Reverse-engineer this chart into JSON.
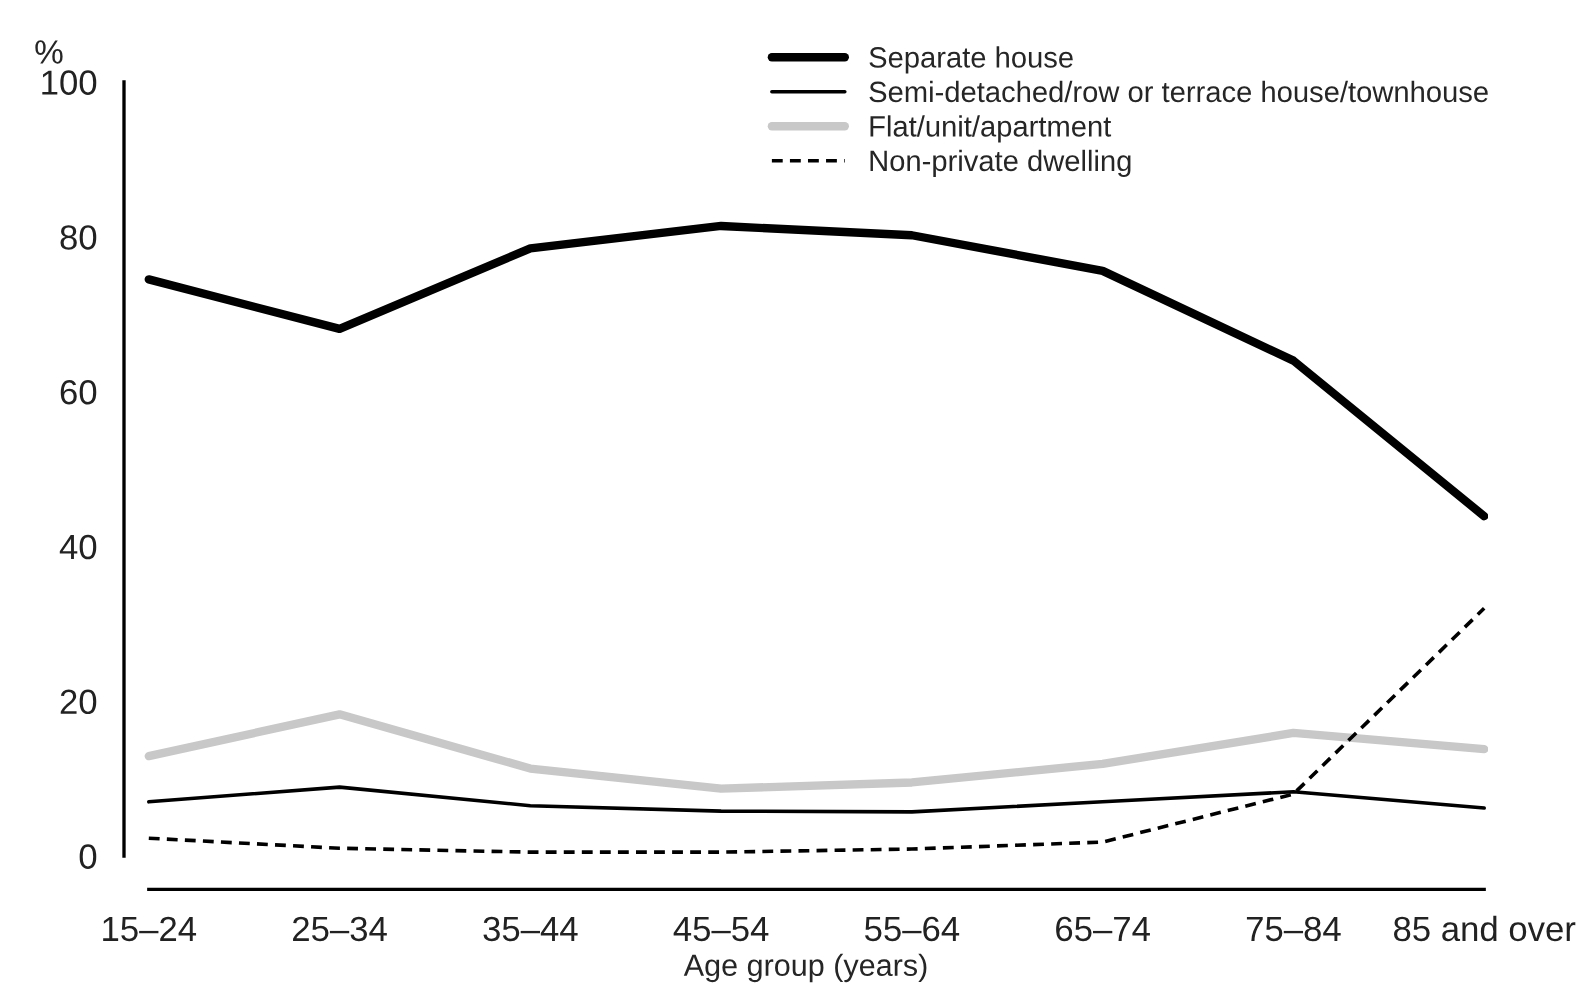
{
  "chart_data": {
    "type": "line",
    "ylabel": "%",
    "xlabel": "Age group (years)",
    "categories": [
      "15–24",
      "25–34",
      "35–44",
      "45–54",
      "55–64",
      "65–74",
      "75–84",
      "85 and over"
    ],
    "series": [
      {
        "name": "Separate house",
        "color": "#000000",
        "line_style": "solid",
        "values": [
          74.5,
          68.1,
          78.5,
          81.4,
          80.2,
          75.6,
          64.0,
          43.9
        ]
      },
      {
        "name": "Semi-detached/row or terrace house/townhouse",
        "color": "#000000",
        "line_style": "solid",
        "values": [
          7.0,
          8.9,
          6.5,
          5.8,
          5.7,
          7.0,
          8.3,
          6.2
        ]
      },
      {
        "name": "Flat/unit/apartment",
        "color": "#c8c8c8",
        "line_style": "solid",
        "values": [
          12.9,
          18.3,
          11.3,
          8.7,
          9.5,
          11.9,
          15.9,
          13.8
        ]
      },
      {
        "name": "Non-private dwelling",
        "color": "#000000",
        "line_style": "dashed",
        "values": [
          2.3,
          1.0,
          0.5,
          0.5,
          0.9,
          1.8,
          8.0,
          32.0
        ]
      }
    ],
    "ylim": [
      0,
      100
    ],
    "yticks": [
      0,
      20,
      40,
      60,
      80,
      100
    ],
    "grid": false,
    "legend": "top right",
    "marker": "none"
  }
}
